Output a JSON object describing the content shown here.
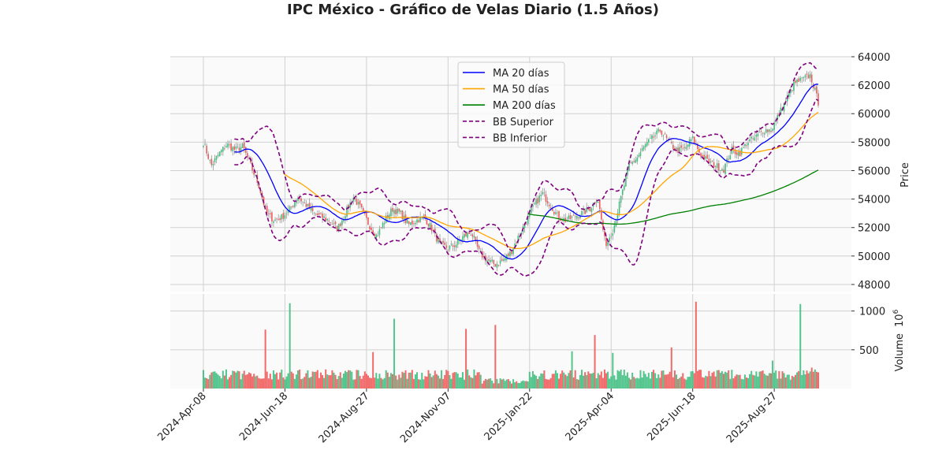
{
  "chart_data": {
    "type": "candlestick",
    "title": "IPC México - Gráfico de Velas Diario (1.5 Años)",
    "ylabel": "Price",
    "volume_label": "Volume",
    "volume_exponent_base": "10",
    "volume_exponent": "6",
    "ylim": [
      47500,
      64000
    ],
    "yticks": [
      48000,
      50000,
      52000,
      54000,
      56000,
      58000,
      60000,
      62000,
      64000
    ],
    "volume_ylim": [
      0,
      1220
    ],
    "volume_yticks": [
      500,
      1000
    ],
    "trading_days": 378,
    "x_tick_labels": [
      "2024-Apr-08",
      "2024-Jun-18",
      "2024-Aug-27",
      "2024-Nov-07",
      "2025-Jan-22",
      "2025-Apr-04",
      "2025-Jun-18",
      "2025-Aug-27"
    ],
    "x_tick_every_days": 50,
    "close_anchors_approx": [
      58000,
      56350,
      57200,
      57850,
      57450,
      57700,
      56350,
      55000,
      53000,
      52500,
      52750,
      53300,
      54150,
      53600,
      53000,
      52750,
      52500,
      51900,
      53000,
      54150,
      53300,
      52200,
      51400,
      52500,
      53300,
      53000,
      52200,
      52500,
      52750,
      51900,
      50800,
      50550,
      50800,
      51400,
      51650,
      50250,
      49700,
      49400,
      49700,
      50250,
      51400,
      52500,
      53600,
      54400,
      53600,
      52750,
      52500,
      52750,
      53000,
      53300,
      54150,
      50800,
      51900,
      54150,
      56350,
      56900,
      57750,
      58300,
      58850,
      58000,
      57450,
      57450,
      58300,
      57200,
      56650,
      56350,
      56100,
      57450,
      57200,
      58000,
      58300,
      58850,
      58850,
      59950,
      61050,
      62150,
      62400,
      62700,
      60800
    ],
    "volume_baseline_millions": 190,
    "volume_spikes_millions": [
      [
        38,
        760
      ],
      [
        53,
        1100
      ],
      [
        104,
        470
      ],
      [
        117,
        900
      ],
      [
        161,
        770
      ],
      [
        179,
        820
      ],
      [
        226,
        480
      ],
      [
        240,
        690
      ],
      [
        251,
        460
      ],
      [
        287,
        530
      ],
      [
        302,
        1120
      ],
      [
        349,
        360
      ],
      [
        366,
        1090
      ],
      [
        373,
        270
      ]
    ],
    "series": [
      {
        "name": "MA 20 días",
        "window": 20,
        "color": "#0000ff",
        "style": "solid"
      },
      {
        "name": "MA 50 días",
        "window": 50,
        "color": "#ffa500",
        "style": "solid"
      },
      {
        "name": "MA 200 días",
        "window": 200,
        "color": "#008000",
        "style": "solid"
      },
      {
        "name": "BB Superior",
        "window": 20,
        "color": "#800080",
        "style": "dashed"
      },
      {
        "name": "BB Inferior",
        "window": 20,
        "color": "#800080",
        "style": "dashed"
      }
    ],
    "up_color": "#3fbf7f",
    "down_color": "#f05a5a",
    "legend_position": "top-center",
    "grid": true
  }
}
